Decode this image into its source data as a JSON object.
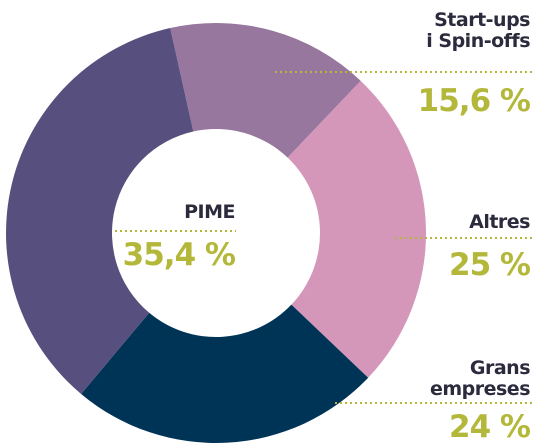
{
  "chart_data": {
    "type": "donut",
    "categories": [
      "Start-ups\ni Spin-offs",
      "Altres",
      "Grans\nempreses",
      "PIME"
    ],
    "values": [
      15.6,
      25,
      24,
      35.4
    ],
    "value_labels": [
      "15,6 %",
      "25 %",
      "24 %",
      "35,4 %"
    ],
    "colors": [
      "#98779e",
      "#d497ba",
      "#003457",
      "#574f7d"
    ]
  }
}
